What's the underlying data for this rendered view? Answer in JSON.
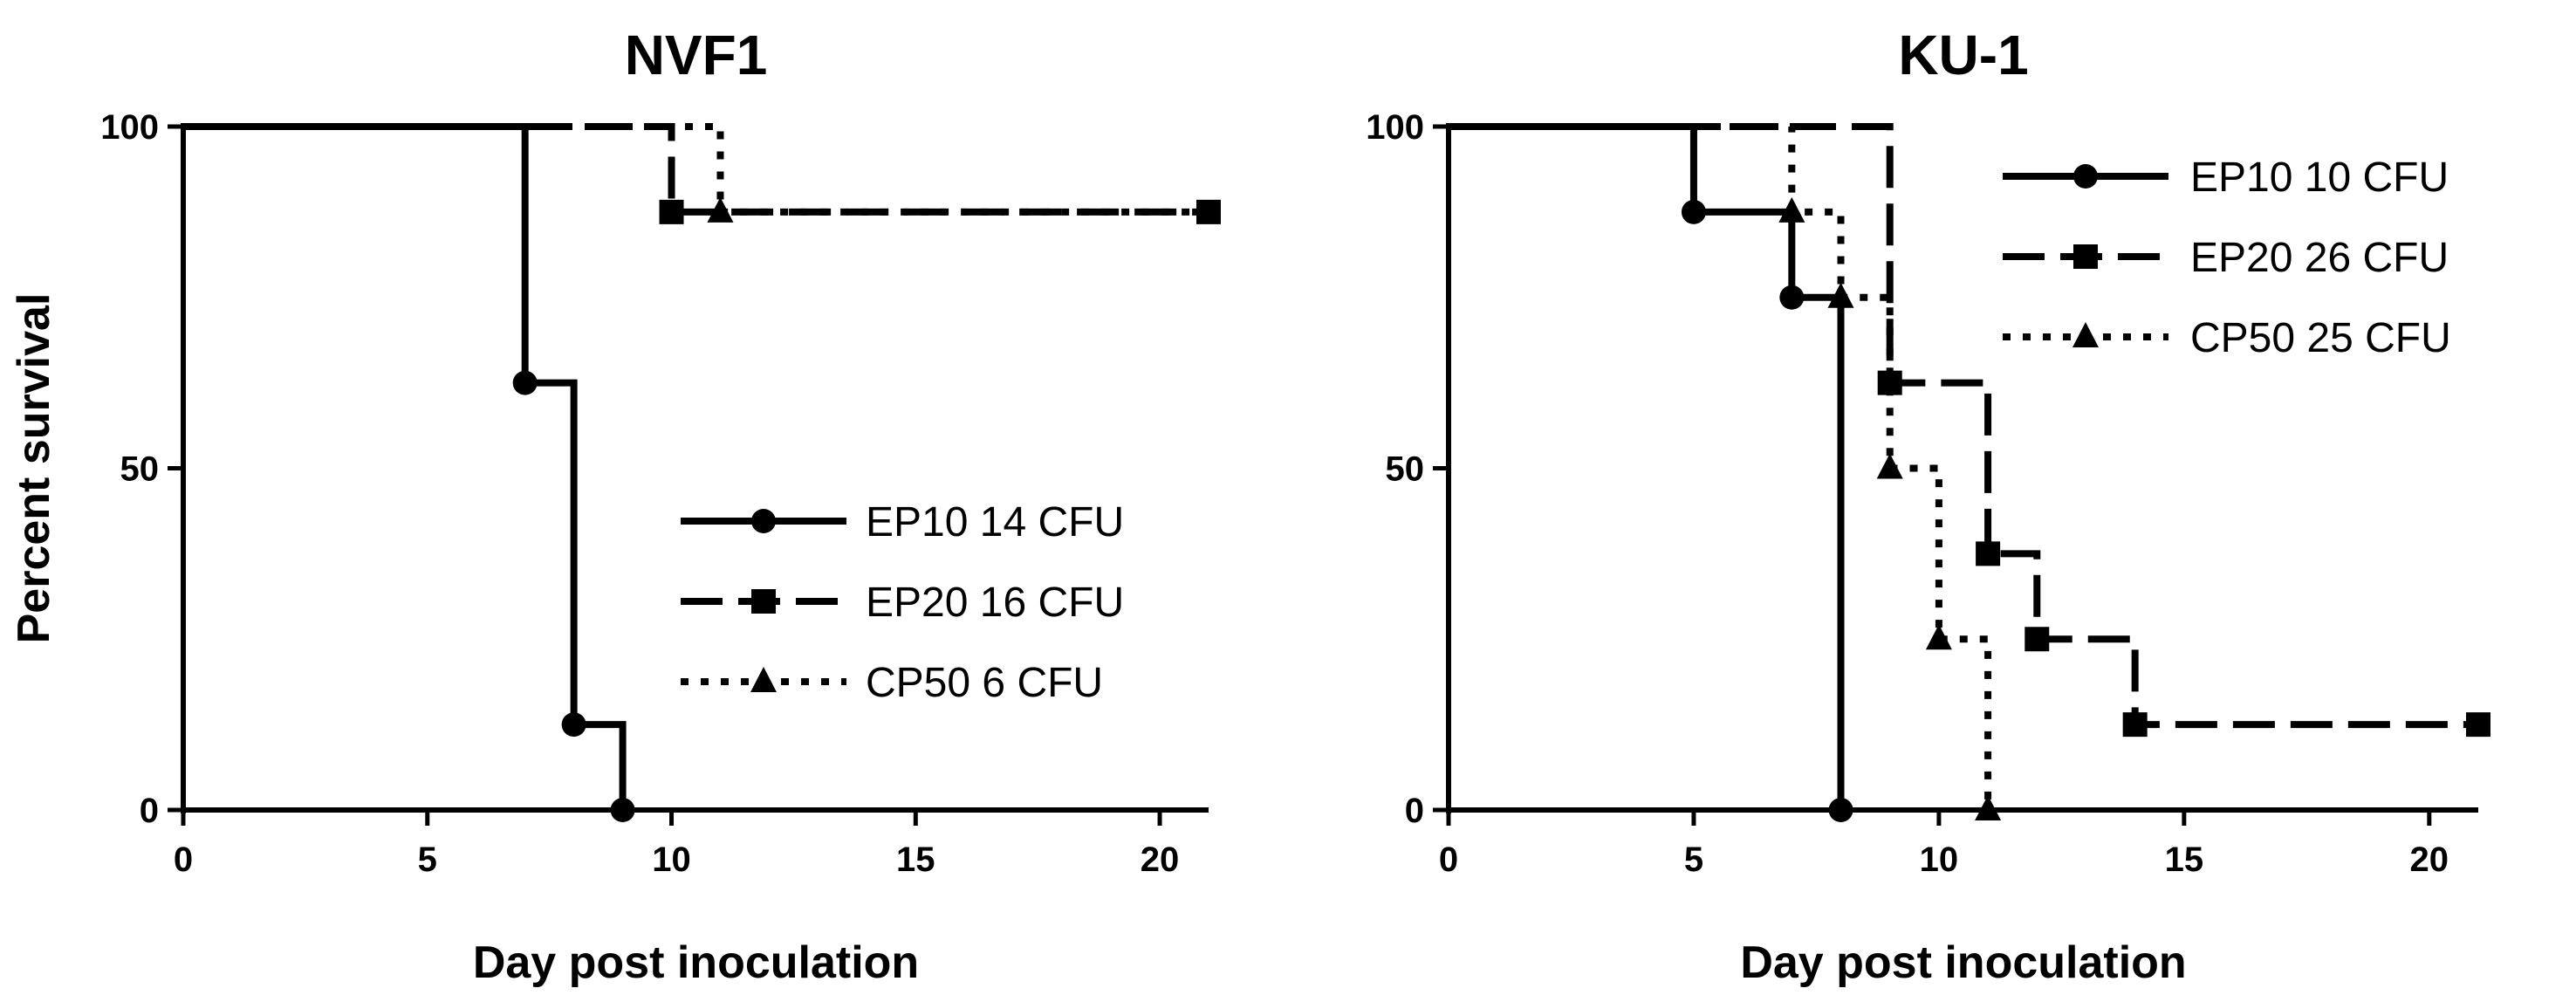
{
  "chart_data": [
    {
      "type": "line",
      "step": true,
      "title": "NVF1",
      "xlabel": "Day post inoculation",
      "ylabel": "Percent survival",
      "xlim": [
        0,
        21
      ],
      "ylim": [
        0,
        100
      ],
      "xticks": [
        0,
        5,
        10,
        15,
        20
      ],
      "yticks": [
        0,
        50,
        100
      ],
      "legend": "center-right",
      "series": [
        {
          "name": "EP10 14 CFU",
          "marker": "circle",
          "dash": "solid",
          "points": [
            [
              0,
              100
            ],
            [
              7,
              62.5
            ],
            [
              8,
              12.5
            ],
            [
              9,
              0
            ]
          ],
          "markers": [
            [
              7,
              62.5
            ],
            [
              8,
              12.5
            ],
            [
              9,
              0
            ]
          ]
        },
        {
          "name": "EP20 16 CFU",
          "marker": "square",
          "dash": "dashed",
          "points": [
            [
              0,
              100
            ],
            [
              10,
              87.5
            ],
            [
              21,
              87.5
            ]
          ],
          "markers": [
            [
              10,
              87.5
            ],
            [
              21,
              87.5
            ]
          ]
        },
        {
          "name": "CP50 6 CFU",
          "marker": "triangle",
          "dash": "dotted",
          "points": [
            [
              0,
              100
            ],
            [
              11,
              87.5
            ],
            [
              21,
              87.5
            ]
          ],
          "markers": [
            [
              11,
              87.5
            ]
          ]
        }
      ]
    },
    {
      "type": "line",
      "step": true,
      "title": "KU-1",
      "xlabel": "Day post inoculation",
      "ylabel": "",
      "xlim": [
        0,
        21
      ],
      "ylim": [
        0,
        100
      ],
      "xticks": [
        0,
        5,
        10,
        15,
        20
      ],
      "yticks": [
        0,
        50,
        100
      ],
      "legend": "top-right",
      "series": [
        {
          "name": "EP10 10 CFU",
          "marker": "circle",
          "dash": "solid",
          "points": [
            [
              0,
              100
            ],
            [
              5,
              87.5
            ],
            [
              7,
              75
            ],
            [
              8,
              0
            ]
          ],
          "markers": [
            [
              5,
              87.5
            ],
            [
              7,
              75
            ],
            [
              8,
              0
            ]
          ]
        },
        {
          "name": "EP20 26 CFU",
          "marker": "square",
          "dash": "dashed",
          "points": [
            [
              0,
              100
            ],
            [
              9,
              62.5
            ],
            [
              11,
              37.5
            ],
            [
              12,
              25
            ],
            [
              14,
              12.5
            ],
            [
              21,
              12.5
            ]
          ],
          "markers": [
            [
              9,
              62.5
            ],
            [
              11,
              37.5
            ],
            [
              12,
              25
            ],
            [
              14,
              12.5
            ],
            [
              21,
              12.5
            ]
          ]
        },
        {
          "name": "CP50 25 CFU",
          "marker": "triangle",
          "dash": "dotted",
          "points": [
            [
              0,
              100
            ],
            [
              7,
              87.5
            ],
            [
              8,
              75
            ],
            [
              9,
              50
            ],
            [
              10,
              25
            ],
            [
              11,
              0
            ]
          ],
          "markers": [
            [
              7,
              87.5
            ],
            [
              8,
              75
            ],
            [
              9,
              50
            ],
            [
              10,
              25
            ],
            [
              11,
              0
            ]
          ]
        }
      ]
    }
  ]
}
